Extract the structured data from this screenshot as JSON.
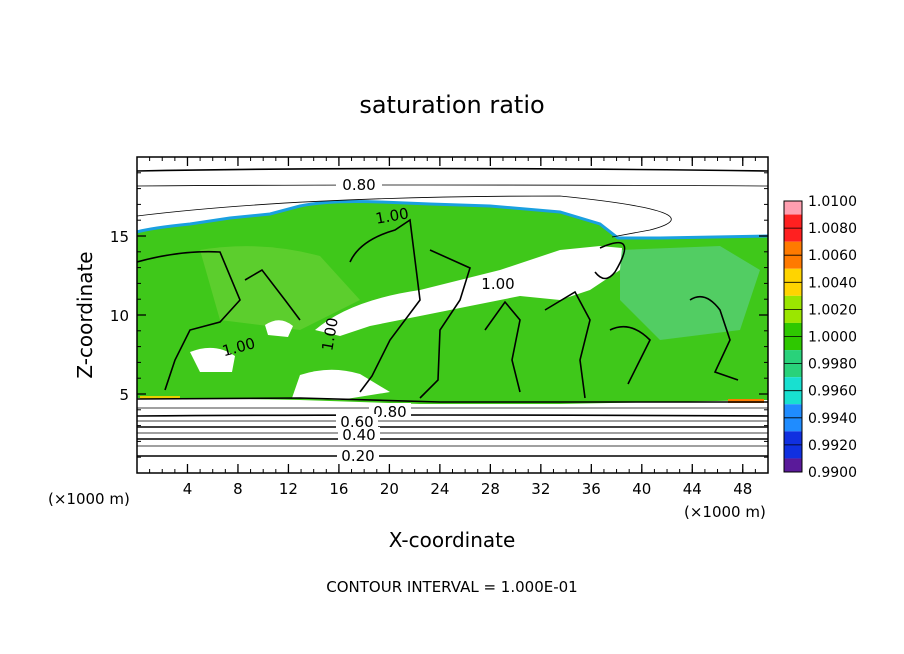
{
  "chart_data": {
    "type": "heatmap",
    "title": "saturation ratio",
    "xlabel": "X-coordinate",
    "ylabel": "Z-coordinate",
    "x_unit_left": "(×1000 m)",
    "x_unit_right": "(×1000 m)",
    "xlim": [
      0,
      50
    ],
    "ylim": [
      0,
      20
    ],
    "x_ticks": [
      4,
      8,
      12,
      16,
      20,
      24,
      28,
      32,
      36,
      40,
      44,
      48
    ],
    "y_ticks": [
      5,
      10,
      15
    ],
    "colorbar": {
      "labels": [
        "1.0100",
        "1.0080",
        "1.0060",
        "1.0040",
        "1.0020",
        "1.0000",
        "0.9980",
        "0.9960",
        "0.9940",
        "0.9920",
        "0.9900"
      ],
      "values": [
        1.01,
        1.008,
        1.006,
        1.004,
        1.002,
        1.0,
        0.998,
        0.996,
        0.994,
        0.992,
        0.99
      ],
      "colors": [
        "#ff6f6f",
        "#ff2020",
        "#ff7a00",
        "#ffd400",
        "#9be600",
        "#2ec800",
        "#29d27a",
        "#18e0d0",
        "#1f8cff",
        "#1030e0",
        "#5a1a9a"
      ],
      "top_color": "#ff9fb0"
    },
    "contour_labels": [
      "0.80",
      "1.00",
      "1.00",
      "1.00",
      "1.00",
      "0.80",
      "0.60",
      "0.40",
      "0.20"
    ],
    "contour_interval_text": "CONTOUR INTERVAL = 1.000E-01"
  }
}
